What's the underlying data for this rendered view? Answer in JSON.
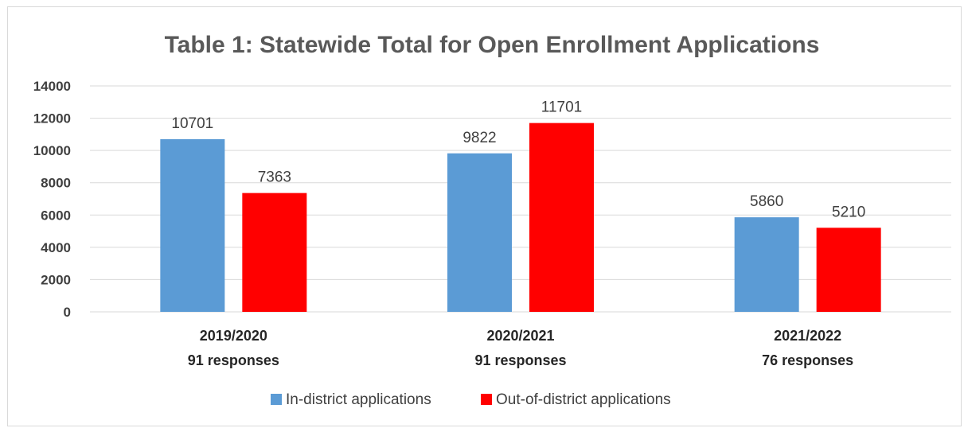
{
  "chart_data": {
    "type": "bar",
    "title": "Table 1: Statewide Total for Open Enrollment Applications",
    "categories": [
      {
        "year": "2019/2020",
        "responses": "91 responses"
      },
      {
        "year": "2020/2021",
        "responses": "91 responses"
      },
      {
        "year": "2021/2022",
        "responses": "76 responses"
      }
    ],
    "series": [
      {
        "name": "In-district applications",
        "color": "#5b9bd5",
        "values": [
          10701,
          9822,
          5860
        ]
      },
      {
        "name": "Out-of-district applications",
        "color": "#ff0000",
        "values": [
          7363,
          11701,
          5210
        ]
      }
    ],
    "yticks": [
      "0",
      "2000",
      "4000",
      "6000",
      "8000",
      "10000",
      "12000",
      "14000"
    ],
    "ylim": [
      0,
      14000
    ],
    "grid": true,
    "legend_position": "bottom"
  }
}
